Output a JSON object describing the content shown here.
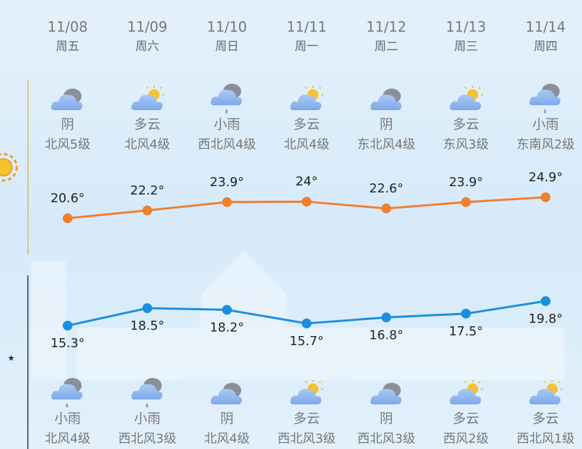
{
  "chart_data": {
    "type": "line",
    "categories": [
      "11/08",
      "11/09",
      "11/10",
      "11/11",
      "11/12",
      "11/13",
      "11/14"
    ],
    "weekdays": [
      "周五",
      "周六",
      "周日",
      "周一",
      "周二",
      "周三",
      "周四"
    ],
    "day_weather": [
      {
        "condition": "阴",
        "wind": "北风5级"
      },
      {
        "condition": "多云",
        "wind": "北风4级"
      },
      {
        "condition": "小雨",
        "wind": "西北风4级"
      },
      {
        "condition": "多云",
        "wind": "北风4级"
      },
      {
        "condition": "阴",
        "wind": "东北风4级"
      },
      {
        "condition": "多云",
        "wind": "东风3级"
      },
      {
        "condition": "小雨",
        "wind": "东南风2级"
      }
    ],
    "night_weather": [
      {
        "condition": "小雨",
        "wind": "北风4级"
      },
      {
        "condition": "小雨",
        "wind": "西北风3级"
      },
      {
        "condition": "阴",
        "wind": "北风4级"
      },
      {
        "condition": "多云",
        "wind": "西北风3级"
      },
      {
        "condition": "阴",
        "wind": "西北风3级"
      },
      {
        "condition": "多云",
        "wind": "西风2级"
      },
      {
        "condition": "多云",
        "wind": "西北风1级"
      }
    ],
    "series": [
      {
        "color": "#f07f2e",
        "values": [
          20.6,
          22.2,
          23.9,
          24,
          22.6,
          23.9,
          24.9
        ],
        "value_labels": [
          "20.6°",
          "22.2°",
          "23.9°",
          "24°",
          "22.6°",
          "23.9°",
          "24.9°"
        ]
      },
      {
        "color": "#1a8fe0",
        "values": [
          15.3,
          18.5,
          18.2,
          15.7,
          16.8,
          17.5,
          19.8
        ],
        "value_labels": [
          "15.3°",
          "18.5°",
          "18.2°",
          "15.7°",
          "16.8°",
          "17.5°",
          "19.8°"
        ]
      }
    ]
  }
}
